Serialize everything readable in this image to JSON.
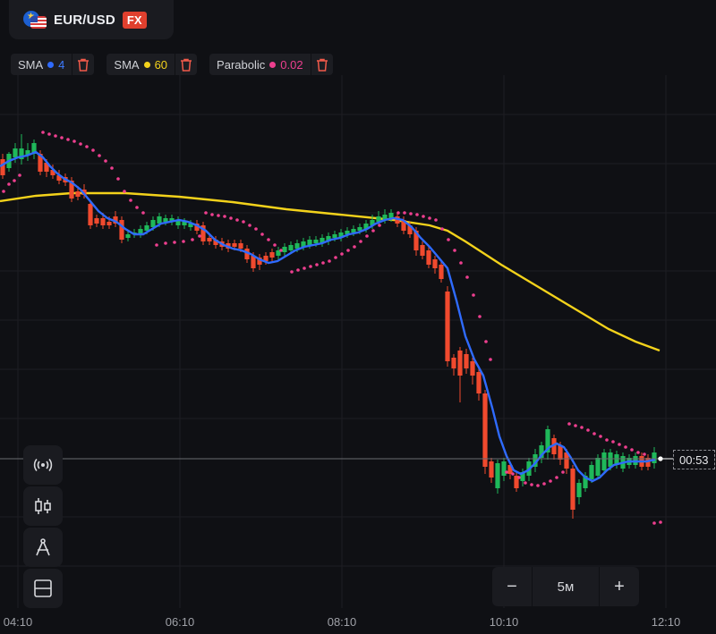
{
  "header": {
    "pair": "EUR/USD",
    "badge": "FX",
    "flag_icon": "eur-usd-flag-icon"
  },
  "indicators": [
    {
      "name": "SMA",
      "value": "4",
      "color": "#2f6bff"
    },
    {
      "name": "SMA",
      "value": "60",
      "color": "#f3d21b"
    },
    {
      "name": "Parabolic",
      "value": "0.02",
      "color": "#ee3f8f"
    }
  ],
  "time_labels": [
    "04:10",
    "06:10",
    "08:10",
    "10:10",
    "12:10"
  ],
  "timer": "00:53",
  "zoom": {
    "minus": "−",
    "interval": "5м",
    "plus": "+"
  },
  "colors": {
    "up": "#1fb85a",
    "down": "#f04a2e",
    "sma4": "#2f6bff",
    "sma60": "#f3d21b",
    "psar": "#ee3f8f",
    "bg": "#0f1014"
  },
  "tools": [
    "signal-tool",
    "candles-tool",
    "drawing-tool",
    "layout-tool"
  ]
}
